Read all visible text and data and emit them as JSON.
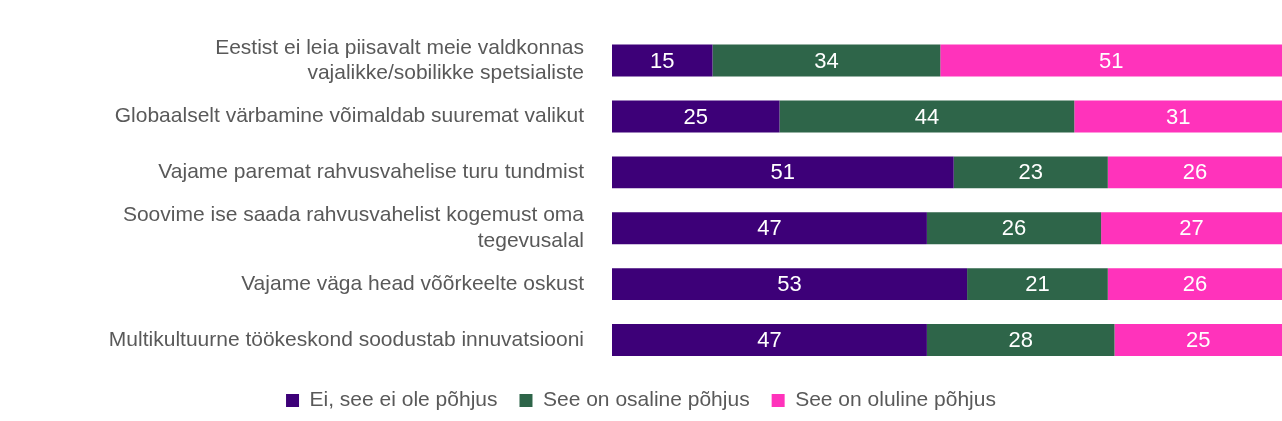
{
  "chart_data": {
    "type": "bar",
    "orientation": "horizontal",
    "stacked": true,
    "data_labels": true,
    "legend": "bottom",
    "categories": [
      "Eestist ei leia piisavalt meie valdkonnas vajalikke/sobilikke spetsialiste",
      "Globaalselt värbamine võimaldab suuremat valikut",
      "Vajame paremat rahvusvahelise turu tundmist",
      "Soovime ise saada rahvusvahelist kogemust oma tegevusalal",
      "Vajame väga head võõrkeelte oskust",
      "Multikultuurne töökeskond soodustab innuvatsiooni"
    ],
    "series": [
      {
        "name": "Ei, see ei ole põhjus",
        "color": "#3d0078",
        "values": [
          15,
          25,
          51,
          47,
          53,
          47
        ]
      },
      {
        "name": "See on osaline põhjus",
        "color": "#2e6549",
        "values": [
          34,
          44,
          23,
          26,
          21,
          28
        ]
      },
      {
        "name": "See on oluline põhjus",
        "color": "#ff33bb",
        "values": [
          51,
          31,
          26,
          27,
          26,
          25
        ]
      }
    ]
  }
}
